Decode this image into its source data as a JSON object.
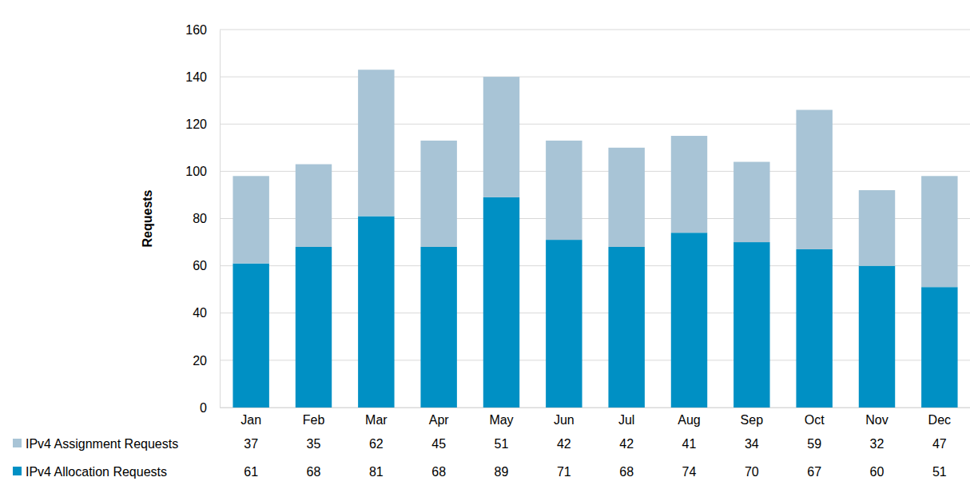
{
  "chart_data": {
    "type": "bar",
    "stacked": true,
    "y_label": "Requests",
    "categories": [
      "Jan",
      "Feb",
      "Mar",
      "Apr",
      "May",
      "Jun",
      "Jul",
      "Aug",
      "Sep",
      "Oct",
      "Nov",
      "Dec"
    ],
    "series": [
      {
        "name": "IPv4 Allocation Requests",
        "color": "#0090c4",
        "values": [
          61,
          68,
          81,
          68,
          89,
          71,
          68,
          74,
          70,
          67,
          60,
          51
        ]
      },
      {
        "name": "IPv4 Assignment Requests",
        "color": "#a8c4d6",
        "values": [
          37,
          35,
          62,
          45,
          51,
          42,
          42,
          41,
          34,
          59,
          32,
          47
        ]
      }
    ],
    "ylim": [
      0,
      160
    ],
    "yticks": [
      0,
      20,
      40,
      60,
      80,
      100,
      120,
      140,
      160
    ],
    "grid": true,
    "data_labels": true
  }
}
